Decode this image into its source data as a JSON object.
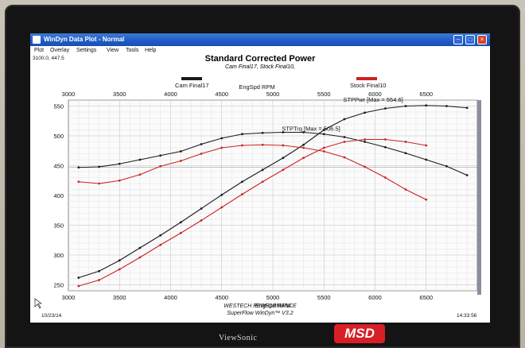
{
  "window": {
    "title": "WinDyn Data Plot - Normal",
    "controls": [
      "minimize-icon",
      "maximize-icon",
      "close-icon"
    ]
  },
  "menu": [
    {
      "label": "Plot"
    },
    {
      "label": "Overlay"
    },
    {
      "label": "Settings"
    },
    {
      "label": "View"
    },
    {
      "label": "Tools"
    },
    {
      "label": "Help"
    }
  ],
  "cursor_readout": "3100.0, 447.5",
  "header": {
    "title": "Standard Corrected Power",
    "subtitle": "Cam Final17, Stock Final10,",
    "legend": [
      {
        "label": "Cam Final17",
        "color": "#1a1a1a"
      },
      {
        "label": "Stock Final10",
        "color": "#cc2222"
      }
    ]
  },
  "chart_data": {
    "type": "line",
    "xlabel": "EngSpd RPM",
    "xlabel_top": "EngSpd RPM",
    "xlim": [
      3000,
      7000
    ],
    "ylim": [
      240,
      560
    ],
    "x_ticks": [
      "3000",
      "3500",
      "4000",
      "4500",
      "5000",
      "5500",
      "6000",
      "6500"
    ],
    "y_ticks": [
      "250",
      "300",
      "350",
      "400",
      "450",
      "500",
      "550"
    ],
    "grid": true,
    "annotations": [
      {
        "text": "STPPwr [Max = 554.6]",
        "x": 6000,
        "y": 555
      },
      {
        "text": "STPTrq [Max = 506.5]",
        "x": 5400,
        "y": 506
      }
    ],
    "reference_line": 447.5,
    "series": [
      {
        "name": "Cam Final17",
        "color": "#1a1a1a",
        "kind": "power",
        "x": [
          3100,
          3300,
          3500,
          3700,
          3900,
          4100,
          4300,
          4500,
          4700,
          4900,
          5100,
          5300,
          5500,
          5700,
          5900,
          6100,
          6300,
          6500,
          6700,
          6900
        ],
        "y": [
          262,
          273,
          291,
          312,
          333,
          355,
          378,
          401,
          423,
          443,
          463,
          485,
          510,
          528,
          539,
          546,
          550,
          551,
          550,
          547
        ]
      },
      {
        "name": "Cam Final17",
        "color": "#1a1a1a",
        "kind": "torque",
        "x": [
          3100,
          3300,
          3500,
          3700,
          3900,
          4100,
          4300,
          4500,
          4700,
          4900,
          5100,
          5300,
          5500,
          5700,
          5900,
          6100,
          6300,
          6500,
          6700,
          6900
        ],
        "y": [
          447,
          448,
          453,
          460,
          467,
          474,
          486,
          496,
          503,
          505,
          506,
          506,
          503,
          498,
          490,
          481,
          471,
          460,
          449,
          434
        ]
      },
      {
        "name": "Stock Final10",
        "color": "#cc2222",
        "kind": "power",
        "x": [
          3100,
          3300,
          3500,
          3700,
          3900,
          4100,
          4300,
          4500,
          4700,
          4900,
          5100,
          5300,
          5500,
          5700,
          5900,
          6100,
          6300,
          6500
        ],
        "y": [
          248,
          258,
          276,
          296,
          317,
          337,
          358,
          380,
          402,
          423,
          443,
          463,
          480,
          490,
          494,
          494,
          490,
          484
        ]
      },
      {
        "name": "Stock Final10",
        "color": "#cc2222",
        "kind": "torque",
        "x": [
          3100,
          3300,
          3500,
          3700,
          3900,
          4100,
          4300,
          4500,
          4700,
          4900,
          5100,
          5300,
          5500,
          5700,
          5900,
          6100,
          6300,
          6500
        ],
        "y": [
          423,
          420,
          425,
          435,
          449,
          458,
          470,
          480,
          484,
          485,
          484,
          480,
          474,
          464,
          448,
          430,
          410,
          393
        ]
      }
    ]
  },
  "footer": {
    "line1": "WESTECH PERFORMANCE",
    "line2": "SuperFlow WinDyn™ V3.2",
    "date": "10/23/14",
    "time": "14:33:56"
  },
  "monitor": {
    "brand": "ViewSonic",
    "logo": "MSD"
  }
}
